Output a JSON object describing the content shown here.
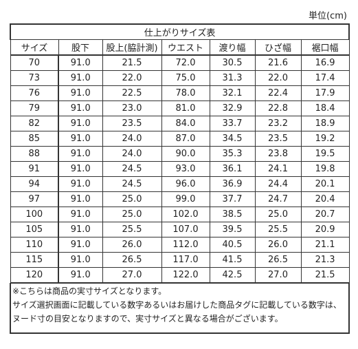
{
  "unit": "単位(cm)",
  "table": {
    "title": "仕上がりサイズ表",
    "headers": [
      "サイズ",
      "股下",
      "股上(脇計測)",
      "ウエスト",
      "渡り幅",
      "ひざ幅",
      "裾口幅"
    ],
    "rows": [
      [
        "70",
        "91.0",
        "21.5",
        "72.0",
        "30.5",
        "21.6",
        "16.9"
      ],
      [
        "73",
        "91.0",
        "22.0",
        "75.0",
        "31.3",
        "22.0",
        "17.4"
      ],
      [
        "76",
        "91.0",
        "22.5",
        "78.0",
        "32.1",
        "22.4",
        "17.9"
      ],
      [
        "79",
        "91.0",
        "23.0",
        "81.0",
        "32.9",
        "22.8",
        "18.4"
      ],
      [
        "82",
        "91.0",
        "23.5",
        "84.0",
        "33.7",
        "23.2",
        "18.9"
      ],
      [
        "85",
        "91.0",
        "24.0",
        "87.0",
        "34.5",
        "23.5",
        "19.2"
      ],
      [
        "88",
        "91.0",
        "24.0",
        "90.0",
        "35.3",
        "23.8",
        "19.5"
      ],
      [
        "91",
        "91.0",
        "24.5",
        "93.0",
        "36.1",
        "24.1",
        "19.8"
      ],
      [
        "94",
        "91.0",
        "24.5",
        "96.0",
        "36.9",
        "24.4",
        "20.1"
      ],
      [
        "97",
        "91.0",
        "25.0",
        "99.0",
        "37.7",
        "24.7",
        "20.4"
      ],
      [
        "100",
        "91.0",
        "25.0",
        "102.0",
        "38.5",
        "25.0",
        "20.7"
      ],
      [
        "105",
        "91.0",
        "25.5",
        "107.0",
        "39.5",
        "25.5",
        "20.9"
      ],
      [
        "110",
        "91.0",
        "26.0",
        "112.0",
        "40.5",
        "26.0",
        "21.1"
      ],
      [
        "115",
        "91.0",
        "26.5",
        "117.0",
        "41.5",
        "26.5",
        "21.3"
      ],
      [
        "120",
        "91.0",
        "27.0",
        "122.0",
        "42.5",
        "27.0",
        "21.5"
      ]
    ],
    "notes": [
      "※こちらは商品の実寸サイズとなります。",
      "サイズ選択画面に記載している数字あるいはお届けした商品タグに記載している数字は、",
      "ヌード寸の目安となりますので、実寸サイズと異なる場合がございます。"
    ]
  }
}
